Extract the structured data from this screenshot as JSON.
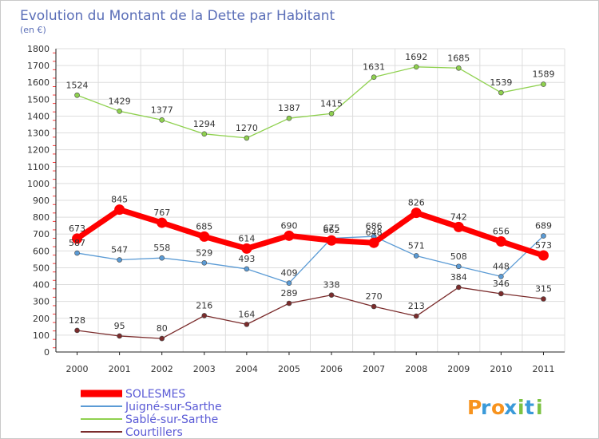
{
  "chart_data": {
    "type": "line",
    "title": "Evolution du Montant de la Dette par Habitant",
    "subtitle": "(en €)",
    "xlabel": "",
    "ylabel": "",
    "categories": [
      "2000",
      "2001",
      "2002",
      "2003",
      "2004",
      "2005",
      "2006",
      "2007",
      "2008",
      "2009",
      "2010",
      "2011"
    ],
    "ylim": [
      0,
      1800
    ],
    "yticks": [
      0,
      100,
      200,
      300,
      400,
      500,
      600,
      700,
      800,
      900,
      1000,
      1100,
      1200,
      1300,
      1400,
      1500,
      1600,
      1700,
      1800
    ],
    "grid": true,
    "legend_position": "bottom-left",
    "series": [
      {
        "name": "SOLESMES",
        "color": "#ff0000",
        "values": [
          673,
          845,
          767,
          685,
          614,
          690,
          662,
          648,
          826,
          742,
          656,
          573
        ],
        "labels": [
          "673",
          "845",
          "767",
          "685",
          "614",
          "690",
          "662",
          "648",
          "826",
          "742",
          "656",
          "573"
        ]
      },
      {
        "name": "Juigné-sur-Sarthe",
        "color": "#5b9bd5",
        "values": [
          587,
          547,
          558,
          529,
          493,
          409,
          675,
          686,
          571,
          508,
          448,
          689
        ],
        "labels": [
          "587",
          "547",
          "558",
          "529",
          "493",
          "409",
          "675",
          "686",
          "571",
          "508",
          "448",
          "689"
        ]
      },
      {
        "name": "Sablé-sur-Sarthe",
        "color": "#8fd14f",
        "values": [
          1524,
          1429,
          1377,
          1294,
          1270,
          1387,
          1415,
          1631,
          1692,
          1685,
          1539,
          1589
        ],
        "labels": [
          "1524",
          "1429",
          "1377",
          "1294",
          "1270",
          "1387",
          "1415",
          "1631",
          "1692",
          "1685",
          "1539",
          "1589"
        ]
      },
      {
        "name": "Courtillers",
        "color": "#7b2c2c",
        "values": [
          128,
          95,
          80,
          216,
          164,
          289,
          338,
          270,
          213,
          384,
          346,
          315
        ],
        "labels": [
          "128",
          "95",
          "80",
          "216",
          "164",
          "289",
          "338",
          "270",
          "213",
          "384",
          "346",
          "315"
        ]
      }
    ]
  },
  "brand": {
    "logo_text": "Proxiti",
    "letters": [
      "P",
      "r",
      "o",
      "x",
      "i",
      "t",
      "i"
    ]
  }
}
